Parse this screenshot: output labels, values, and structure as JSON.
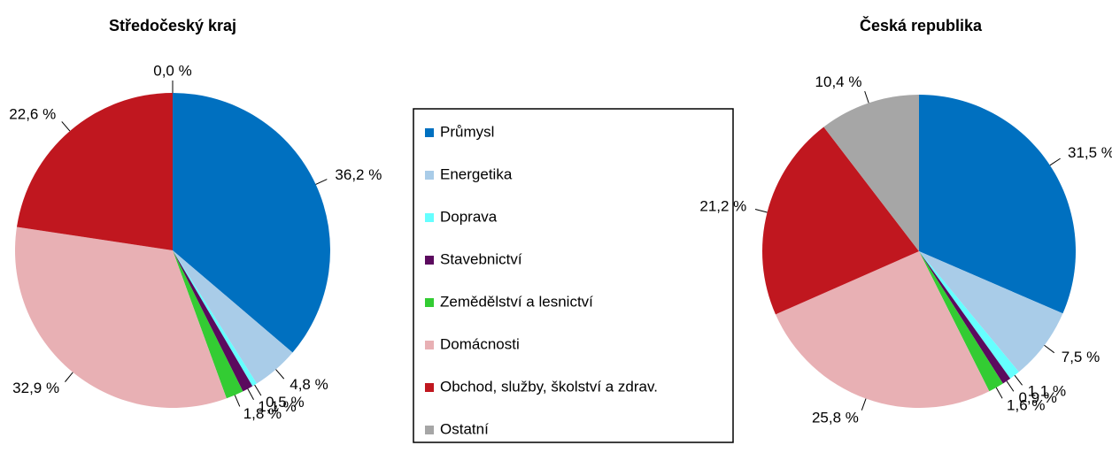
{
  "legend": {
    "categories": [
      "Průmysl",
      "Energetika",
      "Doprava",
      "Stavebnictví",
      "Zemědělství a lesnictví",
      "Domácnosti",
      "Obchod, služby, školství a zdrav.",
      "Ostatní"
    ],
    "colors": [
      "#0070c0",
      "#a9cce8",
      "#66ffff",
      "#5b0a5e",
      "#33cc33",
      "#e8b0b4",
      "#c0171f",
      "#a6a6a6"
    ]
  },
  "chart_data": [
    {
      "type": "pie",
      "title": "Středočeský kraj",
      "values": [
        36.2,
        4.8,
        0.5,
        1.1,
        1.8,
        32.9,
        22.6,
        0.0
      ],
      "value_labels": [
        "36,2 %",
        "4,8 %",
        "0,5 %",
        "1,1 %",
        "1,8 %",
        "32,9 %",
        "22,6 %",
        "0,0 %"
      ]
    },
    {
      "type": "pie",
      "title": "Česká republika",
      "values": [
        31.5,
        7.5,
        1.1,
        0.9,
        1.6,
        25.8,
        21.2,
        10.4
      ],
      "value_labels": [
        "31,5 %",
        "7,5 %",
        "1,1 %",
        "0,9 %",
        "1,6 %",
        "25,8 %",
        "21,2 %",
        "10,4 %"
      ]
    }
  ]
}
